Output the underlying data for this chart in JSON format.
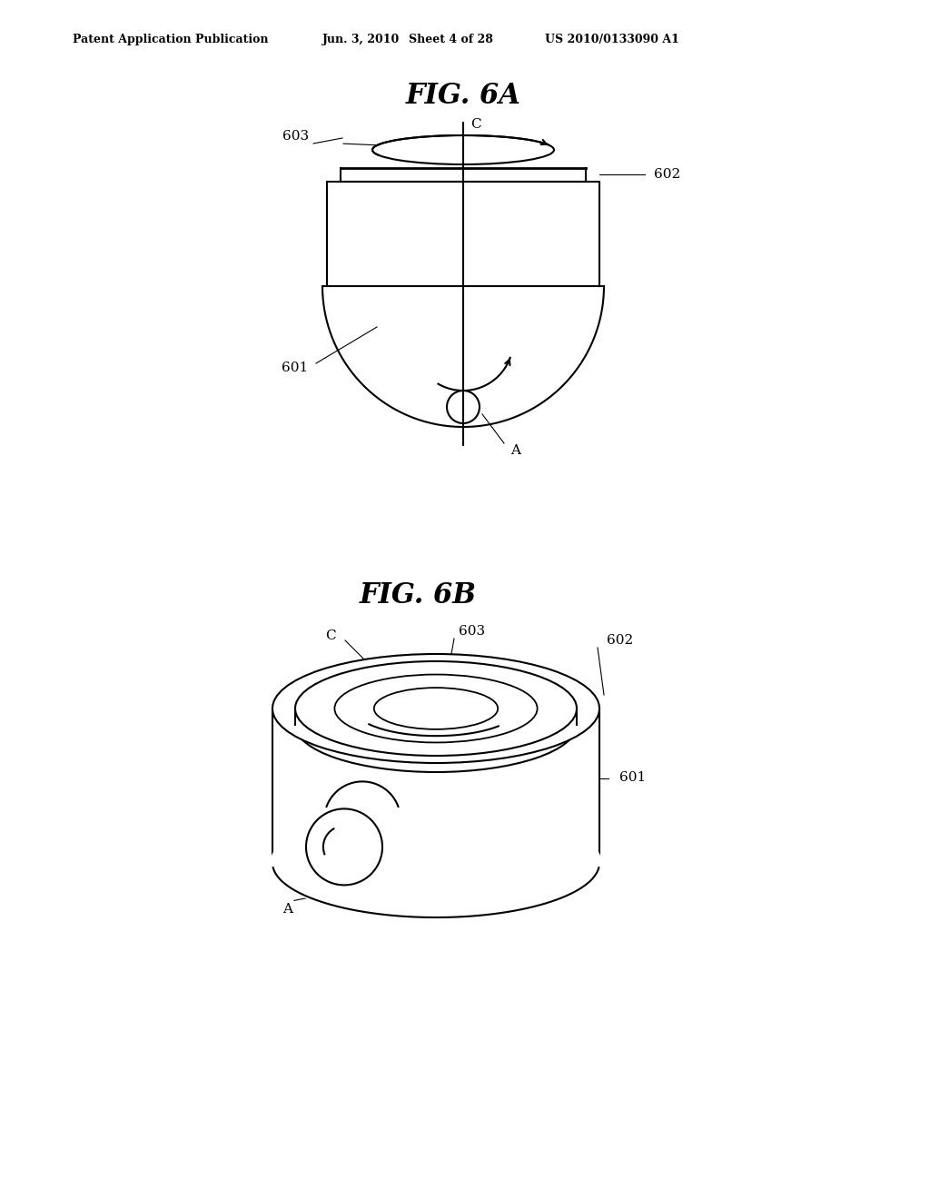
{
  "background_color": "#ffffff",
  "header_text": "Patent Application Publication",
  "header_date": "Jun. 3, 2010",
  "header_sheet": "Sheet 4 of 28",
  "header_patent": "US 2010/0133090 A1",
  "fig6a_title": "FIG. 6A",
  "fig6b_title": "FIG. 6B",
  "line_color": "#000000",
  "line_width": 1.5,
  "label_fontsize": 11,
  "title_fontsize": 22
}
